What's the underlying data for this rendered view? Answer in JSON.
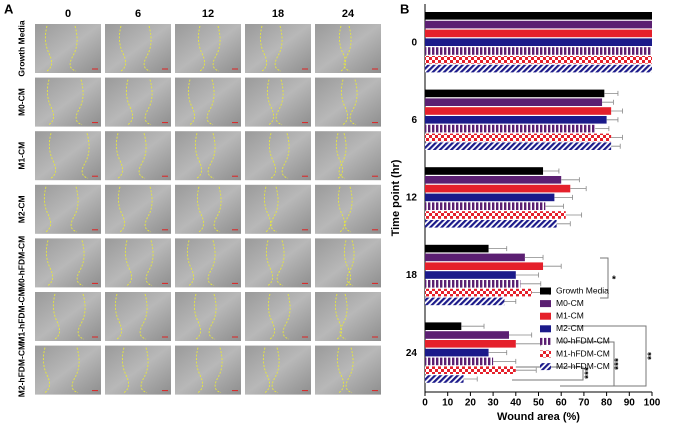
{
  "panel_a": {
    "label": "A",
    "columns": [
      "0",
      "6",
      "12",
      "18",
      "24"
    ],
    "rows": [
      "Growth Media",
      "M0-CM",
      "M1-CM",
      "M2-CM",
      "M0-hFDM-CM",
      "M1-hFDM-CM",
      "M2-hFDM-CM"
    ]
  },
  "chart_data": {
    "type": "barh",
    "panel_label": "B",
    "x_label": "Wound area (%)",
    "y_label": "Time point (hr)",
    "categories": [
      "0",
      "6",
      "12",
      "18",
      "24"
    ],
    "xlim": [
      0,
      100
    ],
    "xticks": [
      0,
      10,
      20,
      30,
      40,
      50,
      60,
      70,
      80,
      90,
      100
    ],
    "series": [
      {
        "name": "Growth Media",
        "color": "#000000",
        "pattern": "solid",
        "values": [
          100,
          79,
          52,
          28,
          16
        ],
        "errors": [
          0,
          6,
          7,
          8,
          10
        ]
      },
      {
        "name": "M0-CM",
        "color": "#5b1f72",
        "pattern": "solid",
        "values": [
          100,
          78,
          60,
          44,
          37
        ],
        "errors": [
          0,
          5,
          8,
          8,
          10
        ]
      },
      {
        "name": "M1-CM",
        "color": "#e5202b",
        "pattern": "solid",
        "values": [
          100,
          82,
          64,
          52,
          40
        ],
        "errors": [
          0,
          5,
          7,
          8,
          11
        ]
      },
      {
        "name": "M2-CM",
        "color": "#1b1a8a",
        "pattern": "solid",
        "values": [
          100,
          80,
          57,
          40,
          28
        ],
        "errors": [
          0,
          5,
          8,
          10,
          8
        ]
      },
      {
        "name": "M0-hFDM-CM",
        "color": "#5b1f72",
        "pattern": "vertical",
        "values": [
          100,
          75,
          53,
          42,
          30
        ],
        "errors": [
          0,
          6,
          8,
          9,
          10
        ]
      },
      {
        "name": "M1-hFDM-CM",
        "color": "#e5202b",
        "pattern": "checker",
        "values": [
          100,
          82,
          62,
          47,
          40
        ],
        "errors": [
          0,
          5,
          7,
          8,
          9
        ]
      },
      {
        "name": "M2-hFDM-CM",
        "color": "#1b1a8a",
        "pattern": "diagonal",
        "values": [
          100,
          82,
          58,
          35,
          17
        ],
        "errors": [
          0,
          4,
          6,
          5,
          6
        ]
      }
    ],
    "annotations": [
      "*",
      "**",
      "***",
      "***"
    ]
  }
}
